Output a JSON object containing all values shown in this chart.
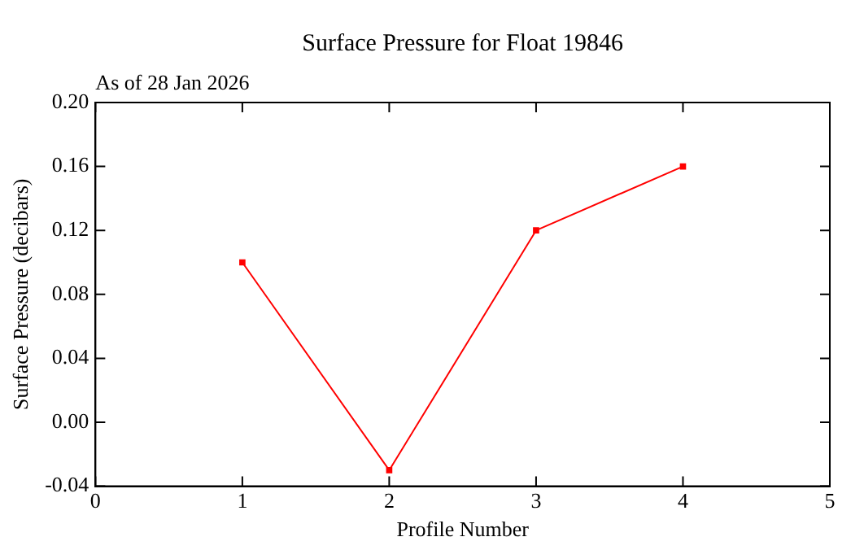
{
  "chart_data": {
    "type": "line",
    "title": "Surface Pressure for Float 19846",
    "subtitle": "As of 28 Jan 2026",
    "xlabel": "Profile Number",
    "ylabel": "Surface Pressure (decibars)",
    "x": [
      1,
      2,
      3,
      4
    ],
    "series": [
      {
        "color": "#ff0000",
        "values": [
          0.1,
          -0.03,
          0.12,
          0.16
        ]
      }
    ],
    "xlim": [
      0,
      5
    ],
    "xticks": [
      0,
      1,
      2,
      3,
      4,
      5
    ],
    "ylim": [
      -0.04,
      0.2
    ],
    "yticks": [
      {
        "value": -0.04,
        "label": "-0.04"
      },
      {
        "value": 0,
        "label": "0.00"
      },
      {
        "value": 0.04,
        "label": "0.04"
      },
      {
        "value": 0.08,
        "label": "0.08"
      },
      {
        "value": 0.12,
        "label": "0.12"
      },
      {
        "value": 0.16,
        "label": "0.16"
      },
      {
        "value": 0.2,
        "label": "0.20"
      }
    ],
    "marker": "square",
    "line_style": "solid",
    "grid": false,
    "legend": false
  }
}
